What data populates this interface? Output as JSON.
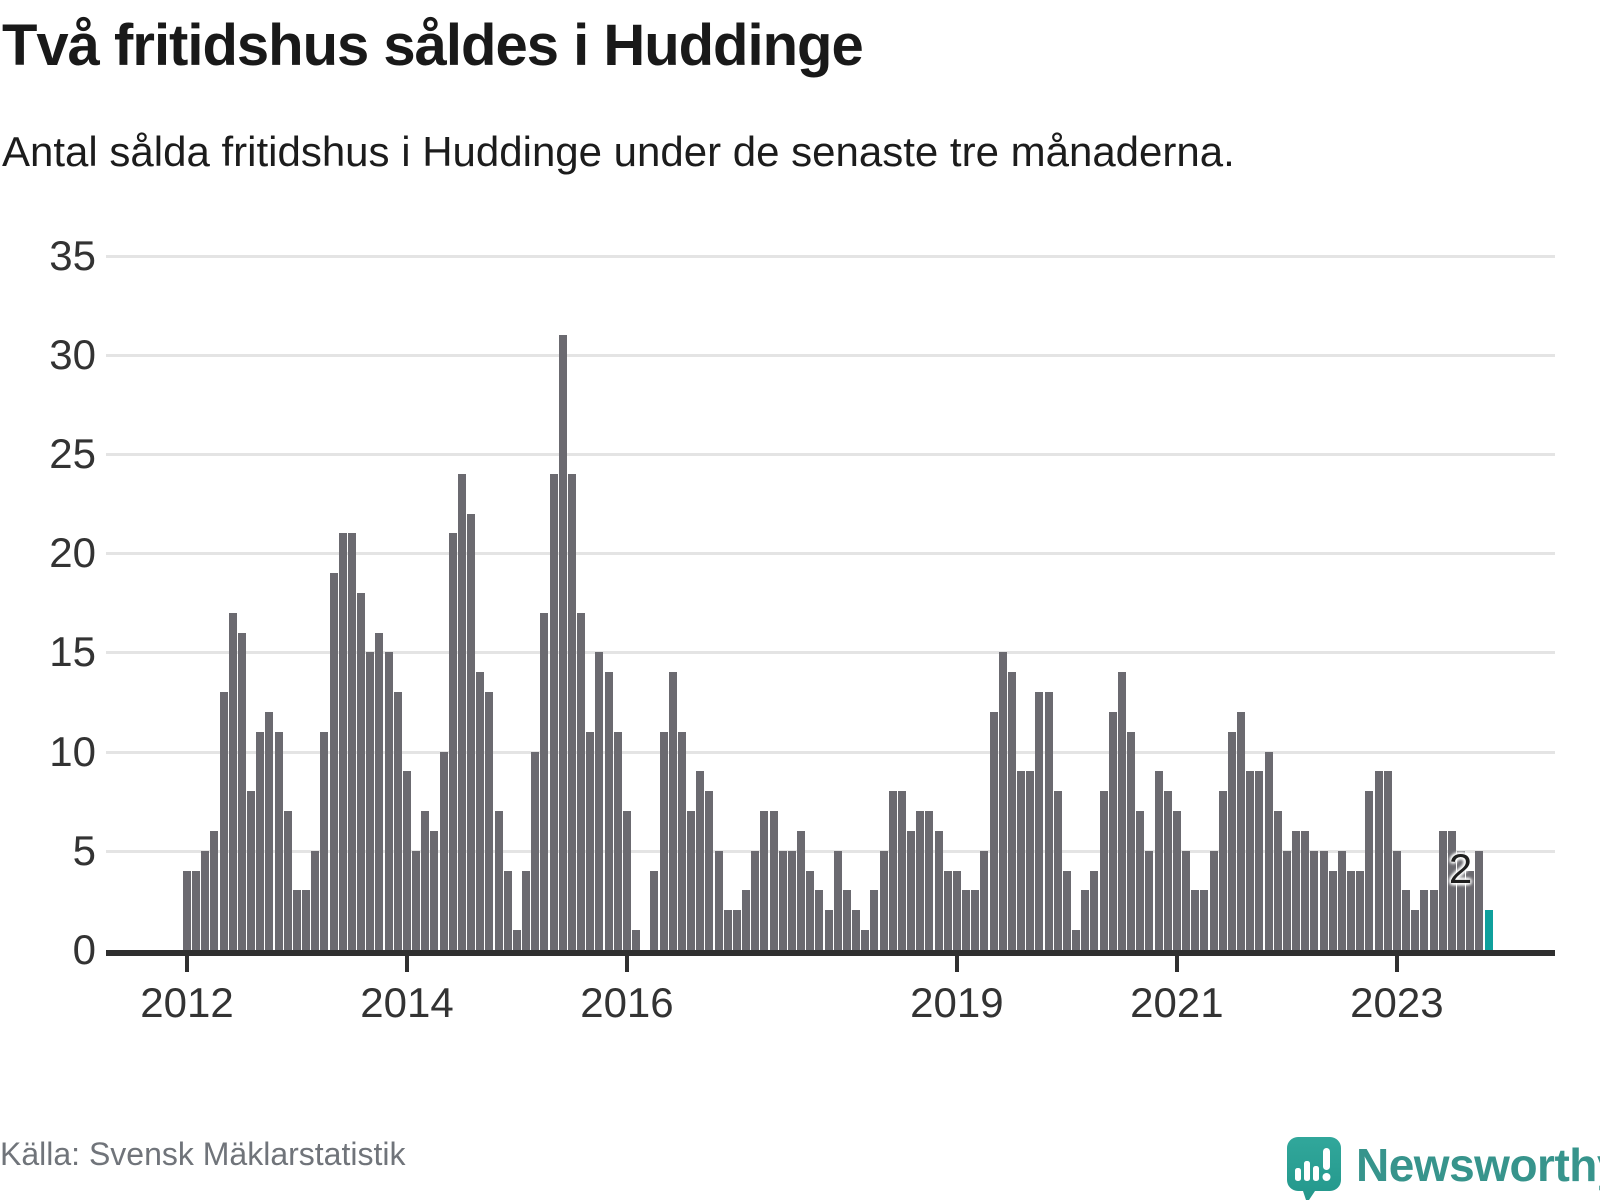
{
  "title": "Två fritidshus såldes i Huddinge",
  "subtitle": "Antal sålda fritidshus i Huddinge under de senaste tre månaderna.",
  "source": "Källa: Svensk Mäklarstatistik",
  "brand": {
    "wordmark": "Newsworthy",
    "logo_icon": "speech-bubble-with-bar-chart-and-exclamation",
    "logo_color": "#2d9f96",
    "wordmark_color": "#37948c"
  },
  "chart_data": {
    "type": "bar",
    "title": "Två fritidshus såldes i Huddinge",
    "subtitle": "Antal sålda fritidshus i Huddinge under de senaste tre månaderna.",
    "x_start": "2012-01",
    "x_end": "2023-11",
    "ylim": [
      0,
      35
    ],
    "yticks": [
      0,
      5,
      10,
      15,
      20,
      25,
      30,
      35
    ],
    "x_tick_labels": [
      "2012",
      "2014",
      "2016",
      "2019",
      "2021",
      "2023"
    ],
    "x_tick_month_indices": [
      0,
      24,
      48,
      84,
      108,
      132
    ],
    "grid": true,
    "legend": "none",
    "bar_color": "#6b6a70",
    "highlight_color": "#0fa09c",
    "highlight": {
      "month": "2023-11",
      "value": 2,
      "label": "2"
    },
    "monthly_values_by_year": [
      {
        "year": 2012,
        "values": [
          4,
          4,
          5,
          6,
          13,
          17,
          16,
          8,
          11,
          12,
          11,
          7
        ]
      },
      {
        "year": 2013,
        "values": [
          3,
          3,
          5,
          11,
          19,
          21,
          21,
          18,
          15,
          16,
          15,
          13
        ]
      },
      {
        "year": 2014,
        "values": [
          9,
          5,
          7,
          6,
          10,
          21,
          24,
          22,
          14,
          13,
          7,
          4
        ]
      },
      {
        "year": 2015,
        "values": [
          1,
          4,
          10,
          17,
          24,
          31,
          24,
          17,
          11,
          15,
          14,
          11
        ]
      },
      {
        "year": 2016,
        "values": [
          7,
          1,
          0,
          4,
          11,
          14,
          11,
          7,
          9,
          8,
          5,
          2
        ]
      },
      {
        "year": 2017,
        "values": [
          2,
          3,
          5,
          7,
          7,
          5,
          5,
          6,
          4,
          3,
          2,
          5
        ]
      },
      {
        "year": 2018,
        "values": [
          3,
          2,
          1,
          3,
          5,
          8,
          8,
          6,
          7,
          7,
          6,
          4
        ]
      },
      {
        "year": 2019,
        "values": [
          4,
          3,
          3,
          5,
          12,
          15,
          14,
          9,
          9,
          13,
          13,
          8
        ]
      },
      {
        "year": 2020,
        "values": [
          4,
          1,
          3,
          4,
          8,
          12,
          14,
          11,
          7,
          5,
          9,
          8
        ]
      },
      {
        "year": 2021,
        "values": [
          7,
          5,
          3,
          3,
          5,
          8,
          11,
          12,
          9,
          9,
          10,
          7
        ]
      },
      {
        "year": 2022,
        "values": [
          5,
          6,
          6,
          5,
          5,
          4,
          5,
          4,
          4,
          8,
          9,
          9
        ]
      },
      {
        "year": 2023,
        "values": [
          5,
          3,
          2,
          3,
          3,
          6,
          6,
          5,
          4,
          5,
          2
        ]
      }
    ]
  }
}
